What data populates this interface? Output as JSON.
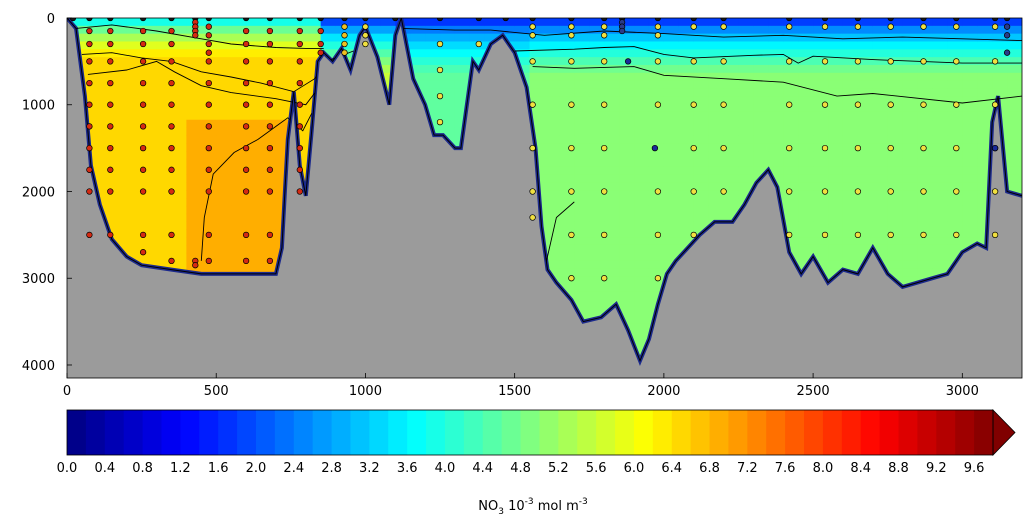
{
  "chart_data": {
    "type": "heatmap",
    "title": "",
    "xlabel": "",
    "ylabel": "",
    "xlim": [
      0,
      3200
    ],
    "ylim": [
      4150,
      0
    ],
    "y_inverted": true,
    "x_ticks": [
      "0",
      "500",
      "1000",
      "1500",
      "2000",
      "2500",
      "3000"
    ],
    "x_tick_values": [
      0,
      500,
      1000,
      1500,
      2000,
      2500,
      3000
    ],
    "y_ticks": [
      "0",
      "1000",
      "2000",
      "3000",
      "4000"
    ],
    "y_tick_values": [
      0,
      1000,
      2000,
      3000,
      4000
    ],
    "colorbar": {
      "label_parts": [
        "NO",
        "3",
        " 10",
        "-3",
        " mol m",
        "-3"
      ],
      "min": 0.0,
      "max": 9.8,
      "step": 0.2,
      "extend": "max",
      "tick_labels": [
        "0.0",
        "0.4",
        "0.8",
        "1.2",
        "1.6",
        "2.0",
        "2.4",
        "2.8",
        "3.2",
        "3.6",
        "4.0",
        "4.4",
        "4.8",
        "5.2",
        "5.6",
        "6.0",
        "6.4",
        "6.8",
        "7.2",
        "7.6",
        "8.0",
        "8.4",
        "8.8",
        "9.2",
        "9.6"
      ],
      "tick_values": [
        0.0,
        0.4,
        0.8,
        1.2,
        1.6,
        2.0,
        2.4,
        2.8,
        3.2,
        3.6,
        4.0,
        4.4,
        4.8,
        5.2,
        5.6,
        6.0,
        6.4,
        6.8,
        7.2,
        7.6,
        8.0,
        8.4,
        8.8,
        9.2,
        9.6
      ]
    },
    "bathymetry_depth": [
      [
        0,
        0
      ],
      [
        30,
        120
      ],
      [
        60,
        900
      ],
      [
        80,
        1700
      ],
      [
        110,
        2150
      ],
      [
        150,
        2550
      ],
      [
        200,
        2750
      ],
      [
        250,
        2850
      ],
      [
        350,
        2900
      ],
      [
        450,
        2950
      ],
      [
        550,
        2950
      ],
      [
        650,
        2950
      ],
      [
        700,
        2950
      ],
      [
        720,
        2650
      ],
      [
        730,
        2000
      ],
      [
        740,
        1400
      ],
      [
        760,
        850
      ],
      [
        780,
        1700
      ],
      [
        800,
        2050
      ],
      [
        820,
        1300
      ],
      [
        840,
        500
      ],
      [
        860,
        400
      ],
      [
        890,
        500
      ],
      [
        920,
        350
      ],
      [
        950,
        600
      ],
      [
        980,
        200
      ],
      [
        1000,
        100
      ],
      [
        1040,
        450
      ],
      [
        1080,
        1000
      ],
      [
        1100,
        200
      ],
      [
        1120,
        0
      ],
      [
        1160,
        700
      ],
      [
        1200,
        1000
      ],
      [
        1230,
        1350
      ],
      [
        1260,
        1350
      ],
      [
        1300,
        1500
      ],
      [
        1320,
        1500
      ],
      [
        1340,
        1000
      ],
      [
        1360,
        500
      ],
      [
        1380,
        600
      ],
      [
        1420,
        300
      ],
      [
        1460,
        200
      ],
      [
        1500,
        400
      ],
      [
        1540,
        800
      ],
      [
        1570,
        1500
      ],
      [
        1590,
        2400
      ],
      [
        1610,
        2900
      ],
      [
        1640,
        3050
      ],
      [
        1690,
        3250
      ],
      [
        1730,
        3500
      ],
      [
        1790,
        3450
      ],
      [
        1840,
        3300
      ],
      [
        1880,
        3600
      ],
      [
        1920,
        3950
      ],
      [
        1950,
        3700
      ],
      [
        1980,
        3300
      ],
      [
        2010,
        2950
      ],
      [
        2040,
        2800
      ],
      [
        2080,
        2650
      ],
      [
        2120,
        2500
      ],
      [
        2170,
        2350
      ],
      [
        2230,
        2350
      ],
      [
        2270,
        2150
      ],
      [
        2310,
        1900
      ],
      [
        2350,
        1750
      ],
      [
        2380,
        1950
      ],
      [
        2420,
        2700
      ],
      [
        2460,
        2950
      ],
      [
        2500,
        2750
      ],
      [
        2550,
        3050
      ],
      [
        2600,
        2900
      ],
      [
        2650,
        2950
      ],
      [
        2700,
        2650
      ],
      [
        2750,
        2950
      ],
      [
        2800,
        3100
      ],
      [
        2850,
        3050
      ],
      [
        2900,
        3000
      ],
      [
        2950,
        2950
      ],
      [
        3000,
        2700
      ],
      [
        3050,
        2600
      ],
      [
        3080,
        2650
      ],
      [
        3100,
        1200
      ],
      [
        3120,
        900
      ],
      [
        3150,
        2000
      ],
      [
        3200,
        2050
      ]
    ],
    "contour_lines_depth": [
      [
        [
          30,
          120
        ],
        [
          150,
          80
        ],
        [
          300,
          150
        ],
        [
          450,
          240
        ],
        [
          550,
          300
        ],
        [
          700,
          340
        ],
        [
          800,
          350
        ],
        [
          860,
          350
        ]
      ],
      [
        [
          50,
          420
        ],
        [
          150,
          400
        ],
        [
          250,
          460
        ],
        [
          350,
          500
        ],
        [
          450,
          620
        ],
        [
          550,
          680
        ],
        [
          650,
          750
        ],
        [
          760,
          850
        ],
        [
          830,
          700
        ],
        [
          870,
          500
        ],
        [
          960,
          380
        ]
      ],
      [
        [
          70,
          650
        ],
        [
          200,
          600
        ],
        [
          300,
          500
        ],
        [
          360,
          620
        ],
        [
          450,
          780
        ],
        [
          550,
          860
        ],
        [
          700,
          930
        ],
        [
          800,
          1000
        ],
        [
          840,
          820
        ]
      ],
      [
        [
          450,
          2800
        ],
        [
          460,
          2300
        ],
        [
          490,
          1800
        ],
        [
          560,
          1550
        ],
        [
          640,
          1400
        ],
        [
          700,
          1250
        ],
        [
          740,
          1150
        ],
        [
          790,
          1300
        ],
        [
          820,
          1100
        ]
      ],
      [
        [
          1120,
          120
        ],
        [
          1300,
          140
        ],
        [
          1420,
          140
        ],
        [
          1600,
          200
        ],
        [
          1800,
          150
        ],
        [
          2000,
          180
        ],
        [
          2200,
          220
        ],
        [
          2400,
          200
        ],
        [
          2600,
          240
        ],
        [
          2800,
          220
        ],
        [
          3000,
          240
        ],
        [
          3200,
          260
        ]
      ],
      [
        [
          1500,
          380
        ],
        [
          1700,
          360
        ],
        [
          1800,
          340
        ],
        [
          1900,
          330
        ],
        [
          2000,
          420
        ],
        [
          2100,
          460
        ],
        [
          2300,
          430
        ],
        [
          2400,
          420
        ],
        [
          2450,
          520
        ],
        [
          2500,
          440
        ],
        [
          2700,
          480
        ],
        [
          3000,
          520
        ],
        [
          3200,
          520
        ]
      ],
      [
        [
          1560,
          560
        ],
        [
          1700,
          580
        ],
        [
          1900,
          560
        ],
        [
          2000,
          660
        ],
        [
          2200,
          700
        ],
        [
          2400,
          740
        ],
        [
          2580,
          900
        ],
        [
          2700,
          870
        ],
        [
          3000,
          980
        ],
        [
          3200,
          900
        ]
      ],
      [
        [
          1600,
          2900
        ],
        [
          1640,
          2300
        ],
        [
          1700,
          2120
        ]
      ]
    ],
    "stations": [
      {
        "x": 20,
        "fill": "#f07a10",
        "depths": [
          0
        ]
      },
      {
        "x": 75,
        "fill": "#d42a12",
        "depths": [
          0,
          150,
          300,
          500,
          750,
          1000,
          1250,
          1500,
          1750,
          2000,
          2500
        ]
      },
      {
        "x": 145,
        "fill": "#d42a12",
        "depths": [
          0,
          150,
          300,
          500,
          750,
          1000,
          1250,
          1500,
          1750,
          2000,
          2500
        ]
      },
      {
        "x": 255,
        "fill": "#d42a12",
        "depths": [
          0,
          150,
          300,
          500,
          750,
          1000,
          1250,
          1500,
          1750,
          2000,
          2500,
          2700
        ]
      },
      {
        "x": 350,
        "fill": "#d42a12",
        "depths": [
          0,
          150,
          300,
          500,
          750,
          1000,
          1250,
          1500,
          1750,
          2000,
          2500,
          2800
        ]
      },
      {
        "x": 430,
        "fill": "#d42a12",
        "depths": [
          0,
          50,
          100,
          150,
          200,
          2800,
          2850
        ]
      },
      {
        "x": 475,
        "fill": "#d42a12",
        "depths": [
          0,
          100,
          200,
          300,
          400,
          500,
          750,
          1000,
          1250,
          1500,
          1750,
          2000,
          2500,
          2800
        ]
      },
      {
        "x": 600,
        "fill": "#d42a12",
        "depths": [
          0,
          150,
          300,
          500,
          750,
          1000,
          1250,
          1500,
          1750,
          2000,
          2500,
          2800
        ]
      },
      {
        "x": 680,
        "fill": "#d42a12",
        "depths": [
          0,
          150,
          300,
          500,
          750,
          1000,
          1250,
          1500,
          1750,
          2000,
          2500,
          2800
        ]
      },
      {
        "x": 780,
        "fill": "#d42a12",
        "depths": [
          0,
          150,
          300,
          500,
          750,
          1000,
          1250,
          1500,
          1750,
          2000
        ]
      },
      {
        "x": 850,
        "fill": "#d42a12",
        "depths": [
          0,
          150,
          300,
          400
        ]
      },
      {
        "x": 930,
        "fill": "#f0c020",
        "depths": [
          0,
          100,
          200,
          300,
          400
        ]
      },
      {
        "x": 1000,
        "fill": "#f0e040",
        "depths": [
          0,
          100,
          200,
          300
        ]
      },
      {
        "x": 1100,
        "fill": "#f0e040",
        "depths": [
          0
        ]
      },
      {
        "x": 1250,
        "fill": "#f0e040",
        "depths": [
          0,
          300,
          600,
          900,
          1200
        ]
      },
      {
        "x": 1380,
        "fill": "#f0e040",
        "depths": [
          0,
          300
        ]
      },
      {
        "x": 1470,
        "fill": "#f0e040",
        "depths": [
          0
        ]
      },
      {
        "x": 1560,
        "fill": "#f0e040",
        "depths": [
          0,
          100,
          200,
          500,
          1000,
          1500,
          2000,
          2300
        ]
      },
      {
        "x": 1690,
        "fill": "#f0e040",
        "depths": [
          0,
          100,
          200,
          500,
          1000,
          1500,
          2000,
          2500,
          3000
        ]
      },
      {
        "x": 1800,
        "fill": "#f0e040",
        "depths": [
          0,
          100,
          200,
          500,
          1000,
          1500,
          2000,
          2500,
          3000
        ]
      },
      {
        "x": 1860,
        "fill": "#2a3a8a",
        "depths": [
          0,
          50,
          100,
          150
        ]
      },
      {
        "x": 1980,
        "fill": "#f0e040",
        "depths": [
          0,
          100,
          200,
          500,
          1000,
          2000,
          2500,
          3000
        ]
      },
      {
        "x": 2100,
        "fill": "#f0e040",
        "depths": [
          0,
          100,
          500,
          1000,
          1500,
          2000,
          2500
        ]
      },
      {
        "x": 2200,
        "fill": "#f0e040",
        "depths": [
          0,
          100,
          500,
          1000,
          1500,
          2000
        ]
      },
      {
        "x": 2420,
        "fill": "#f0e040",
        "depths": [
          0,
          100,
          500,
          1000,
          1500,
          2000,
          2500
        ]
      },
      {
        "x": 2540,
        "fill": "#f0e040",
        "depths": [
          0,
          100,
          500,
          1000,
          1500,
          2000,
          2500
        ]
      },
      {
        "x": 2650,
        "fill": "#f0e040",
        "depths": [
          0,
          100,
          500,
          1000,
          1500,
          2000,
          2500
        ]
      },
      {
        "x": 2760,
        "fill": "#f0e040",
        "depths": [
          0,
          100,
          500,
          1000,
          1500,
          2000,
          2500
        ]
      },
      {
        "x": 2870,
        "fill": "#f0e040",
        "depths": [
          0,
          100,
          500,
          1000,
          1500,
          2000,
          2500
        ]
      },
      {
        "x": 2980,
        "fill": "#f0e040",
        "depths": [
          0,
          100,
          500,
          1000,
          1500,
          2000,
          2500
        ]
      },
      {
        "x": 3110,
        "fill": "#f0e040",
        "depths": [
          0,
          100,
          500,
          1000,
          1500,
          2000,
          2500
        ]
      },
      {
        "x": 3150,
        "fill": "#2a3a8a",
        "depths": [
          0,
          100,
          200,
          400
        ]
      }
    ],
    "blue_markers": [
      [
        1880,
        500
      ],
      [
        1970,
        1500
      ],
      [
        3110,
        1500
      ]
    ]
  }
}
